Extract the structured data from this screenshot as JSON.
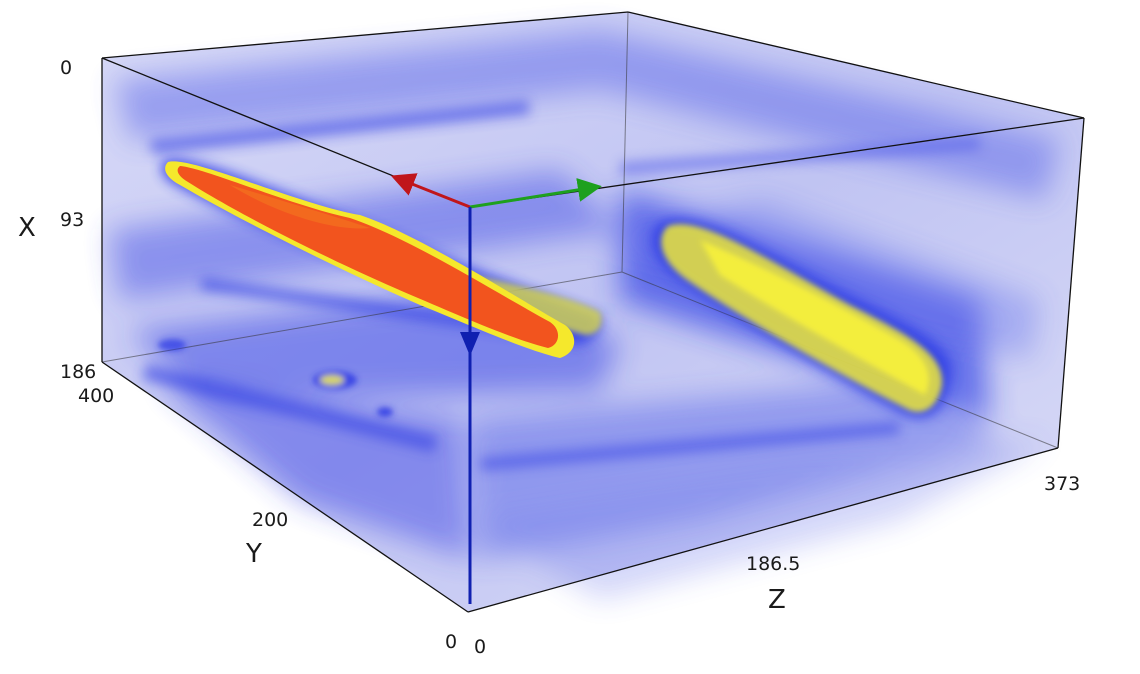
{
  "axes": {
    "x": {
      "label": "X",
      "ticks": [
        "0",
        "93",
        "186"
      ]
    },
    "y": {
      "label": "Y",
      "ticks": [
        "400",
        "200",
        "0"
      ]
    },
    "z": {
      "label": "Z",
      "ticks": [
        "0",
        "186.5",
        "373"
      ]
    }
  },
  "orientation_axes": [
    {
      "name": "red-axis-arrow",
      "color": "#c0161b"
    },
    {
      "name": "green-axis-arrow",
      "color": "#1ea01e"
    },
    {
      "name": "blue-axis-arrow",
      "color": "#1020b0"
    }
  ],
  "colors": {
    "low": "#c8ccf4",
    "mid": "#2a3ae8",
    "high_yellow": "#f4ee2a",
    "peak_red": "#f0461c"
  }
}
